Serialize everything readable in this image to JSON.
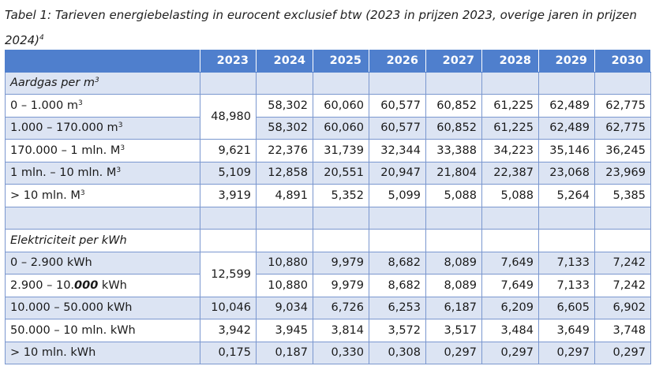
{
  "caption": {
    "text": "Tabel 1: Tarieven energiebelasting in eurocent exclusief btw (2023 in prijzen 2023, overige jaren in prijzen 2024)",
    "footnote": "4"
  },
  "table": {
    "headers": [
      "",
      "2023",
      "2024",
      "2025",
      "2026",
      "2027",
      "2028",
      "2029",
      "2030"
    ],
    "gas_title": "Aardgas per m",
    "gas_title_sup": "3",
    "gas_rows": [
      {
        "label": "0 – 1.000 m",
        "sup": "3",
        "v2023": "48,980",
        "values": [
          "58,302",
          "60,060",
          "60,577",
          "60,852",
          "61,225",
          "62,489",
          "62,775"
        ]
      },
      {
        "label": "1.000 – 170.000 m",
        "sup": "3",
        "values": [
          "58,302",
          "60,060",
          "60,577",
          "60,852",
          "61,225",
          "62,489",
          "62,775"
        ]
      },
      {
        "label": "170.000 – 1 mln. M",
        "sup": "3",
        "v2023": "9,621",
        "values": [
          "22,376",
          "31,739",
          "32,344",
          "33,388",
          "34,223",
          "35,146",
          "36,245"
        ]
      },
      {
        "label": "1 mln. – 10 mln. M",
        "sup": "3",
        "v2023": "5,109",
        "values": [
          "12,858",
          "20,551",
          "20,947",
          "21,804",
          "22,387",
          "23,068",
          "23,969"
        ]
      },
      {
        "label": "> 10 mln. M",
        "sup": "3",
        "v2023": "3,919",
        "values": [
          "4,891",
          "5,352",
          "5,099",
          "5,088",
          "5,088",
          "5,264",
          "5,385"
        ]
      }
    ],
    "elec_title": "Elektriciteit per kWh",
    "elec_rows": [
      {
        "label": "0 – 2.900 kWh",
        "v2023": "12,599",
        "values": [
          "10,880",
          "9,979",
          "8,682",
          "8,089",
          "7,649",
          "7,133",
          "7,242"
        ]
      },
      {
        "label_a": "2.900 – 10.",
        "label_b": "000",
        "label_c": " kWh",
        "values": [
          "10,880",
          "9,979",
          "8,682",
          "8,089",
          "7,649",
          "7,133",
          "7,242"
        ]
      },
      {
        "label": "10.000 – 50.000 kWh",
        "v2023": "10,046",
        "values": [
          "9,034",
          "6,726",
          "6,253",
          "6,187",
          "6,209",
          "6,605",
          "6,902"
        ]
      },
      {
        "label": "50.000 – 10 mln. kWh",
        "v2023": "3,942",
        "values": [
          "3,945",
          "3,814",
          "3,572",
          "3,517",
          "3,484",
          "3,649",
          "3,748"
        ]
      },
      {
        "label": "> 10 mln. kWh",
        "v2023": "0,175",
        "values": [
          "0,187",
          "0,330",
          "0,308",
          "0,297",
          "0,297",
          "0,297",
          "0,297"
        ]
      }
    ]
  }
}
